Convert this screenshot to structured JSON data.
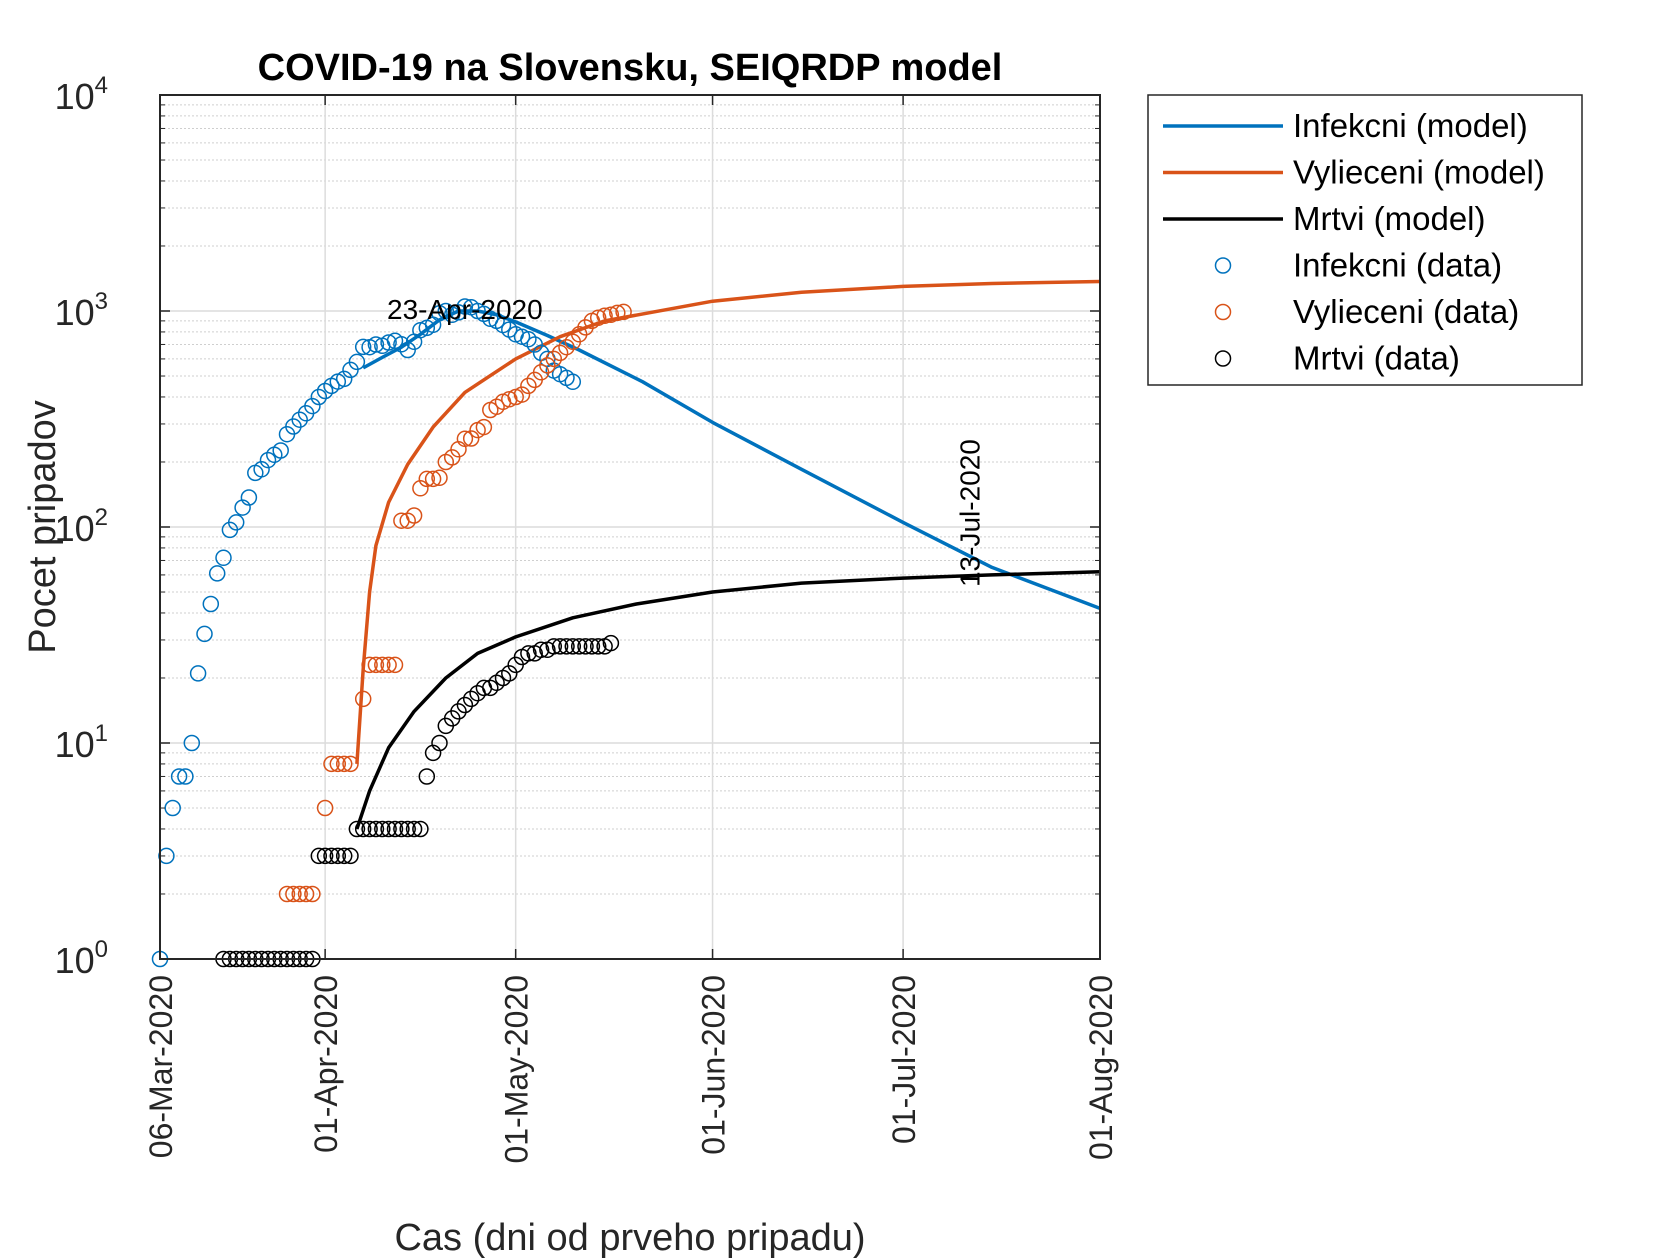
{
  "chart_data": {
    "type": "line",
    "title": "COVID-19 na Slovensku, SEIQRDP model",
    "xlabel": "Cas (dni od prveho pripadu)",
    "ylabel": "Pocet pripadov",
    "yscale": "log",
    "ylim": [
      1,
      10000
    ],
    "xlim": [
      "2020-03-06",
      "2020-08-01"
    ],
    "x_ticks": [
      "06-Mar-2020",
      "01-Apr-2020",
      "01-May-2020",
      "01-Jun-2020",
      "01-Jul-2020",
      "01-Aug-2020"
    ],
    "y_ticks": [
      {
        "base": "10",
        "exp": "0"
      },
      {
        "base": "10",
        "exp": "1"
      },
      {
        "base": "10",
        "exp": "2"
      },
      {
        "base": "10",
        "exp": "3"
      },
      {
        "base": "10",
        "exp": "4"
      }
    ],
    "grid": true,
    "legend_position": "outside-right-top",
    "annotations": [
      {
        "text": "23-Apr-2020",
        "x": "2020-04-23",
        "y": 1000,
        "orientation": "horizontal"
      },
      {
        "text": "13-Jul-2020",
        "x": "2020-07-13",
        "y": 100,
        "orientation": "vertical"
      }
    ],
    "series": [
      {
        "name": "Infekcni (model)",
        "kind": "line",
        "color": "#0072BD",
        "points": [
          [
            "2020-04-07",
            545
          ],
          [
            "2020-04-10",
            610
          ],
          [
            "2020-04-13",
            680
          ],
          [
            "2020-04-16",
            780
          ],
          [
            "2020-04-19",
            910
          ],
          [
            "2020-04-22",
            1000
          ],
          [
            "2020-04-25",
            1000
          ],
          [
            "2020-04-28",
            960
          ],
          [
            "2020-05-01",
            890
          ],
          [
            "2020-05-06",
            770
          ],
          [
            "2020-05-11",
            660
          ],
          [
            "2020-05-21",
            470
          ],
          [
            "2020-06-01",
            305
          ],
          [
            "2020-06-15",
            185
          ],
          [
            "2020-07-01",
            105
          ],
          [
            "2020-07-15",
            65
          ],
          [
            "2020-08-01",
            42
          ]
        ]
      },
      {
        "name": "Vylieceni (model)",
        "kind": "line",
        "color": "#D95319",
        "points": [
          [
            "2020-04-06",
            8
          ],
          [
            "2020-04-07",
            22
          ],
          [
            "2020-04-08",
            50
          ],
          [
            "2020-04-09",
            82
          ],
          [
            "2020-04-11",
            130
          ],
          [
            "2020-04-14",
            195
          ],
          [
            "2020-04-18",
            290
          ],
          [
            "2020-04-23",
            420
          ],
          [
            "2020-05-01",
            600
          ],
          [
            "2020-05-08",
            760
          ],
          [
            "2020-05-15",
            900
          ],
          [
            "2020-06-01",
            1110
          ],
          [
            "2020-06-15",
            1220
          ],
          [
            "2020-07-01",
            1300
          ],
          [
            "2020-07-15",
            1340
          ],
          [
            "2020-08-01",
            1370
          ]
        ]
      },
      {
        "name": "Mrtvi (model)",
        "kind": "line",
        "color": "#000000",
        "points": [
          [
            "2020-04-06",
            4
          ],
          [
            "2020-04-08",
            6
          ],
          [
            "2020-04-11",
            9.5
          ],
          [
            "2020-04-15",
            14
          ],
          [
            "2020-04-20",
            20
          ],
          [
            "2020-04-25",
            26
          ],
          [
            "2020-05-01",
            31
          ],
          [
            "2020-05-10",
            38
          ],
          [
            "2020-05-20",
            44
          ],
          [
            "2020-06-01",
            50
          ],
          [
            "2020-06-15",
            55
          ],
          [
            "2020-07-01",
            58
          ],
          [
            "2020-07-15",
            60
          ],
          [
            "2020-08-01",
            62
          ]
        ]
      },
      {
        "name": "Infekcni (data)",
        "kind": "markers",
        "color": "#0072BD",
        "points": [
          [
            "2020-03-06",
            1
          ],
          [
            "2020-03-07",
            3
          ],
          [
            "2020-03-08",
            5
          ],
          [
            "2020-03-09",
            7
          ],
          [
            "2020-03-10",
            7
          ],
          [
            "2020-03-11",
            10
          ],
          [
            "2020-03-12",
            21
          ],
          [
            "2020-03-13",
            32
          ],
          [
            "2020-03-14",
            44
          ],
          [
            "2020-03-15",
            61
          ],
          [
            "2020-03-16",
            72
          ],
          [
            "2020-03-17",
            97
          ],
          [
            "2020-03-18",
            105
          ],
          [
            "2020-03-19",
            123
          ],
          [
            "2020-03-20",
            137
          ],
          [
            "2020-03-21",
            178
          ],
          [
            "2020-03-22",
            185
          ],
          [
            "2020-03-23",
            204
          ],
          [
            "2020-03-24",
            216
          ],
          [
            "2020-03-25",
            226
          ],
          [
            "2020-03-26",
            269
          ],
          [
            "2020-03-27",
            292
          ],
          [
            "2020-03-28",
            314
          ],
          [
            "2020-03-29",
            336
          ],
          [
            "2020-03-30",
            363
          ],
          [
            "2020-03-31",
            400
          ],
          [
            "2020-04-01",
            426
          ],
          [
            "2020-04-02",
            450
          ],
          [
            "2020-04-03",
            471
          ],
          [
            "2020-04-04",
            485
          ],
          [
            "2020-04-05",
            534
          ],
          [
            "2020-04-06",
            581
          ],
          [
            "2020-04-07",
            682
          ],
          [
            "2020-04-08",
            680
          ],
          [
            "2020-04-09",
            700
          ],
          [
            "2020-04-10",
            690
          ],
          [
            "2020-04-11",
            715
          ],
          [
            "2020-04-12",
            728
          ],
          [
            "2020-04-13",
            701
          ],
          [
            "2020-04-14",
            660
          ],
          [
            "2020-04-15",
            720
          ],
          [
            "2020-04-16",
            815
          ],
          [
            "2020-04-17",
            835
          ],
          [
            "2020-04-18",
            863
          ],
          [
            "2020-04-19",
            977
          ],
          [
            "2020-04-20",
            1000
          ],
          [
            "2020-04-21",
            960
          ],
          [
            "2020-04-22",
            985
          ],
          [
            "2020-04-23",
            1049
          ],
          [
            "2020-04-24",
            1040
          ],
          [
            "2020-04-25",
            1000
          ],
          [
            "2020-04-26",
            970
          ],
          [
            "2020-04-27",
            920
          ],
          [
            "2020-04-28",
            900
          ],
          [
            "2020-04-29",
            860
          ],
          [
            "2020-04-30",
            820
          ],
          [
            "2020-05-01",
            780
          ],
          [
            "2020-05-02",
            760
          ],
          [
            "2020-05-03",
            740
          ],
          [
            "2020-05-04",
            700
          ],
          [
            "2020-05-05",
            640
          ],
          [
            "2020-05-06",
            600
          ],
          [
            "2020-05-07",
            530
          ],
          [
            "2020-05-08",
            510
          ],
          [
            "2020-05-09",
            490
          ],
          [
            "2020-05-10",
            470
          ]
        ]
      },
      {
        "name": "Vylieceni (data)",
        "kind": "markers",
        "color": "#D95319",
        "points": [
          [
            "2020-03-26",
            2
          ],
          [
            "2020-03-27",
            2
          ],
          [
            "2020-03-28",
            2
          ],
          [
            "2020-03-29",
            2
          ],
          [
            "2020-03-30",
            2
          ],
          [
            "2020-04-01",
            5
          ],
          [
            "2020-04-02",
            8
          ],
          [
            "2020-04-03",
            8
          ],
          [
            "2020-04-04",
            8
          ],
          [
            "2020-04-05",
            8
          ],
          [
            "2020-04-07",
            16
          ],
          [
            "2020-04-08",
            23
          ],
          [
            "2020-04-09",
            23
          ],
          [
            "2020-04-10",
            23
          ],
          [
            "2020-04-11",
            23
          ],
          [
            "2020-04-12",
            23
          ],
          [
            "2020-04-13",
            107
          ],
          [
            "2020-04-14",
            107
          ],
          [
            "2020-04-15",
            113
          ],
          [
            "2020-04-16",
            151
          ],
          [
            "2020-04-17",
            167
          ],
          [
            "2020-04-18",
            167
          ],
          [
            "2020-04-19",
            169
          ],
          [
            "2020-04-20",
            200
          ],
          [
            "2020-04-21",
            210
          ],
          [
            "2020-04-22",
            229
          ],
          [
            "2020-04-23",
            256
          ],
          [
            "2020-04-24",
            257
          ],
          [
            "2020-04-25",
            281
          ],
          [
            "2020-04-26",
            290
          ],
          [
            "2020-04-27",
            348
          ],
          [
            "2020-04-28",
            360
          ],
          [
            "2020-04-29",
            380
          ],
          [
            "2020-04-30",
            390
          ],
          [
            "2020-05-01",
            400
          ],
          [
            "2020-05-02",
            410
          ],
          [
            "2020-05-03",
            450
          ],
          [
            "2020-05-04",
            480
          ],
          [
            "2020-05-05",
            520
          ],
          [
            "2020-05-06",
            560
          ],
          [
            "2020-05-07",
            600
          ],
          [
            "2020-05-08",
            640
          ],
          [
            "2020-05-09",
            680
          ],
          [
            "2020-05-10",
            720
          ],
          [
            "2020-05-11",
            780
          ],
          [
            "2020-05-12",
            840
          ],
          [
            "2020-05-13",
            900
          ],
          [
            "2020-05-14",
            930
          ],
          [
            "2020-05-15",
            950
          ],
          [
            "2020-05-16",
            960
          ],
          [
            "2020-05-17",
            980
          ],
          [
            "2020-05-18",
            990
          ]
        ]
      },
      {
        "name": "Mrtvi (data)",
        "kind": "markers",
        "color": "#000000",
        "points": [
          [
            "2020-03-16",
            1
          ],
          [
            "2020-03-17",
            1
          ],
          [
            "2020-03-18",
            1
          ],
          [
            "2020-03-19",
            1
          ],
          [
            "2020-03-20",
            1
          ],
          [
            "2020-03-21",
            1
          ],
          [
            "2020-03-22",
            1
          ],
          [
            "2020-03-23",
            1
          ],
          [
            "2020-03-24",
            1
          ],
          [
            "2020-03-25",
            1
          ],
          [
            "2020-03-26",
            1
          ],
          [
            "2020-03-27",
            1
          ],
          [
            "2020-03-28",
            1
          ],
          [
            "2020-03-29",
            1
          ],
          [
            "2020-03-30",
            1
          ],
          [
            "2020-03-31",
            3
          ],
          [
            "2020-04-01",
            3
          ],
          [
            "2020-04-02",
            3
          ],
          [
            "2020-04-03",
            3
          ],
          [
            "2020-04-04",
            3
          ],
          [
            "2020-04-05",
            3
          ],
          [
            "2020-04-06",
            4
          ],
          [
            "2020-04-07",
            4
          ],
          [
            "2020-04-08",
            4
          ],
          [
            "2020-04-09",
            4
          ],
          [
            "2020-04-10",
            4
          ],
          [
            "2020-04-11",
            4
          ],
          [
            "2020-04-12",
            4
          ],
          [
            "2020-04-13",
            4
          ],
          [
            "2020-04-14",
            4
          ],
          [
            "2020-04-15",
            4
          ],
          [
            "2020-04-16",
            4
          ],
          [
            "2020-04-17",
            7
          ],
          [
            "2020-04-18",
            9
          ],
          [
            "2020-04-19",
            10
          ],
          [
            "2020-04-20",
            12
          ],
          [
            "2020-04-21",
            13
          ],
          [
            "2020-04-22",
            14
          ],
          [
            "2020-04-23",
            15
          ],
          [
            "2020-04-24",
            16
          ],
          [
            "2020-04-25",
            17
          ],
          [
            "2020-04-26",
            18
          ],
          [
            "2020-04-27",
            18
          ],
          [
            "2020-04-28",
            19
          ],
          [
            "2020-04-29",
            20
          ],
          [
            "2020-04-30",
            21
          ],
          [
            "2020-05-01",
            23
          ],
          [
            "2020-05-02",
            25
          ],
          [
            "2020-05-03",
            26
          ],
          [
            "2020-05-04",
            26
          ],
          [
            "2020-05-05",
            27
          ],
          [
            "2020-05-06",
            27
          ],
          [
            "2020-05-07",
            28
          ],
          [
            "2020-05-08",
            28
          ],
          [
            "2020-05-09",
            28
          ],
          [
            "2020-05-10",
            28
          ],
          [
            "2020-05-11",
            28
          ],
          [
            "2020-05-12",
            28
          ],
          [
            "2020-05-13",
            28
          ],
          [
            "2020-05-14",
            28
          ],
          [
            "2020-05-15",
            28
          ],
          [
            "2020-05-16",
            29
          ]
        ]
      }
    ]
  }
}
